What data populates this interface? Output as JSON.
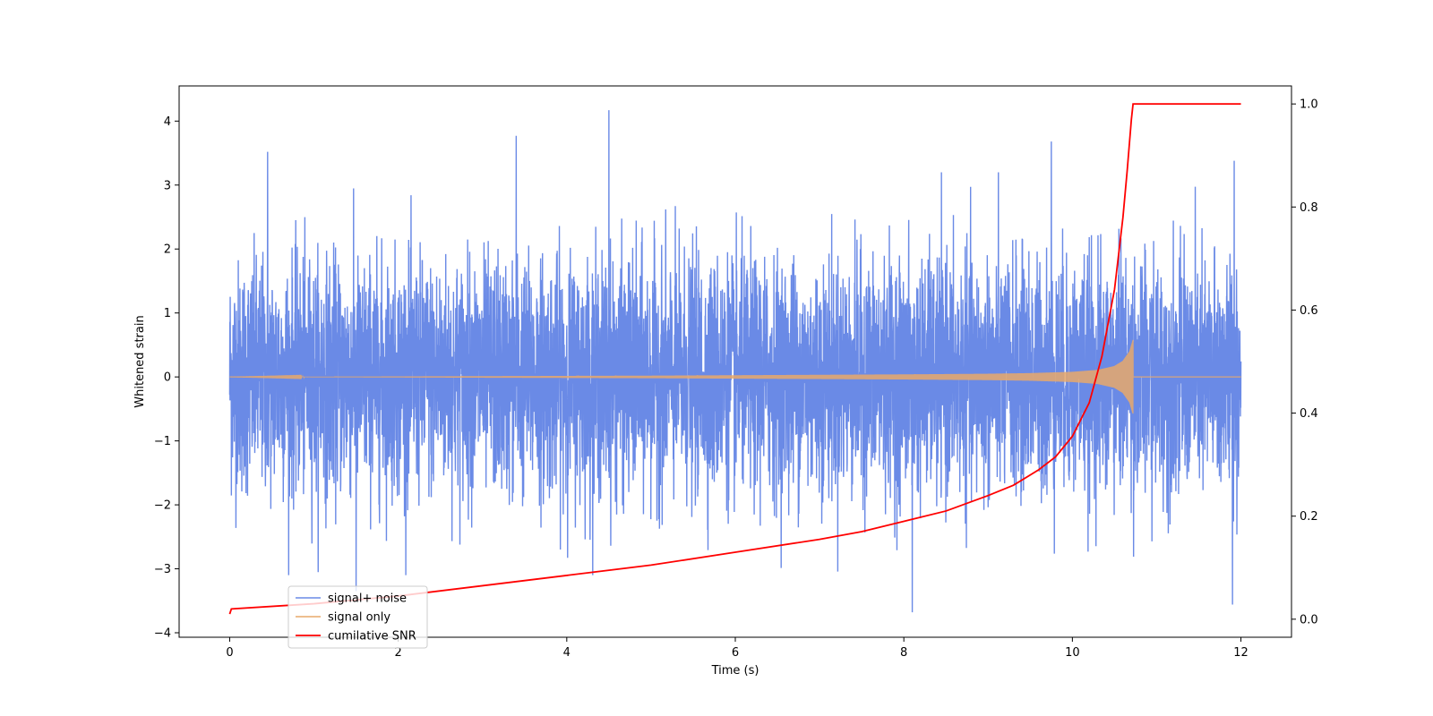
{
  "chart_data": {
    "type": "line",
    "title": "",
    "xlabel": "Time (s)",
    "ylabel": "Whitened strain",
    "y2label": "",
    "xlim": [
      -0.6,
      12.6
    ],
    "ylim": [
      -4.07,
      4.55
    ],
    "y2lim": [
      -0.035,
      1.035
    ],
    "xticks": [
      0,
      2,
      4,
      6,
      8,
      10,
      12
    ],
    "yticks": [
      -4,
      -3,
      -2,
      -1,
      0,
      1,
      2,
      3,
      4
    ],
    "y2ticks": [
      0.0,
      0.2,
      0.4,
      0.6,
      0.8,
      1.0
    ],
    "xtick_labels": [
      "0",
      "2",
      "4",
      "6",
      "8",
      "10",
      "12"
    ],
    "ytick_labels": [
      "−4",
      "−3",
      "−2",
      "−1",
      "0",
      "1",
      "2",
      "3",
      "4"
    ],
    "y2tick_labels": [
      "0.0",
      "0.2",
      "0.4",
      "0.6",
      "0.8",
      "1.0"
    ],
    "grid": false,
    "legend_position": "lower-left",
    "series": [
      {
        "name": "signal+ noise",
        "color": "#6a8ae6",
        "axis": "left",
        "kind": "noise",
        "x_range": [
          0,
          12
        ],
        "amplitude_std": 0.9,
        "peaks": [
          [
            0.45,
            3.52
          ],
          [
            1.5,
            -3.35
          ],
          [
            3.4,
            3.77
          ],
          [
            4.5,
            4.17
          ],
          [
            8.1,
            -3.68
          ],
          [
            9.75,
            3.68
          ],
          [
            11.9,
            -3.56
          ],
          [
            11.92,
            3.38
          ]
        ]
      },
      {
        "name": "signal only",
        "color": "#e8a86a",
        "axis": "left",
        "kind": "chirp",
        "x_range": [
          0,
          12
        ],
        "merger_time": 10.72,
        "envelope": [
          [
            0,
            0.0
          ],
          [
            5.0,
            0.02
          ],
          [
            8.0,
            0.04
          ],
          [
            9.0,
            0.05
          ],
          [
            9.5,
            0.06
          ],
          [
            10.0,
            0.08
          ],
          [
            10.3,
            0.11
          ],
          [
            10.5,
            0.17
          ],
          [
            10.6,
            0.25
          ],
          [
            10.68,
            0.4
          ],
          [
            10.72,
            0.58
          ]
        ]
      },
      {
        "name": "cumilative SNR",
        "color": "#ff0000",
        "axis": "right",
        "kind": "line",
        "x": [
          0,
          0.02,
          1,
          2,
          3,
          4,
          5,
          6,
          7,
          7.5,
          8,
          8.5,
          9,
          9.3,
          9.6,
          9.8,
          10,
          10.2,
          10.35,
          10.5,
          10.6,
          10.65,
          10.7,
          10.72,
          10.75,
          11,
          12
        ],
        "values": [
          0.01,
          0.02,
          0.03,
          0.045,
          0.065,
          0.085,
          0.105,
          0.13,
          0.155,
          0.17,
          0.19,
          0.21,
          0.24,
          0.26,
          0.29,
          0.315,
          0.355,
          0.42,
          0.51,
          0.64,
          0.78,
          0.87,
          0.97,
          1.0,
          1.0,
          1.0,
          1.0
        ]
      }
    ]
  }
}
